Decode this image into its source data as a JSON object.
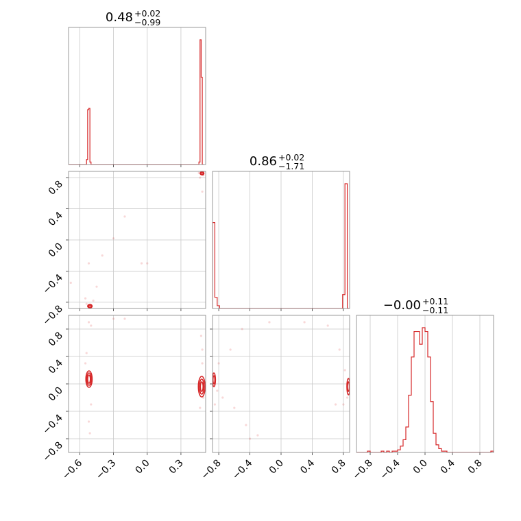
{
  "chart_data": {
    "type": "corner",
    "color": "#d62728",
    "parameters": [
      {
        "title": {
          "value": "0.48",
          "upper": "+0.02",
          "lower": "−0.99"
        },
        "range": [
          -0.7,
          0.52
        ]
      },
      {
        "title": {
          "value": "0.86",
          "upper": "+0.02",
          "lower": "−1.71"
        },
        "range": [
          -0.88,
          0.88
        ]
      },
      {
        "title": {
          "value": "−0.00",
          "upper": "+0.11",
          "lower": "−0.11"
        },
        "range": [
          -1.0,
          1.0
        ]
      }
    ],
    "tick_labels": {
      "p0": [
        {
          "v": -0.6,
          "t": "−0.6"
        },
        {
          "v": -0.3,
          "t": "−0.3"
        },
        {
          "v": 0.0,
          "t": "0.0"
        },
        {
          "v": 0.3,
          "t": "0.3"
        }
      ],
      "p1": [
        {
          "v": -0.8,
          "t": "−0.8"
        },
        {
          "v": -0.4,
          "t": "−0.4"
        },
        {
          "v": 0.0,
          "t": "0.0"
        },
        {
          "v": 0.4,
          "t": "0.4"
        },
        {
          "v": 0.8,
          "t": "0.8"
        }
      ],
      "p2": [
        {
          "v": -0.8,
          "t": "−0.8"
        },
        {
          "v": -0.4,
          "t": "−0.4"
        },
        {
          "v": 0.0,
          "t": "0.0"
        },
        {
          "v": 0.4,
          "t": "0.4"
        },
        {
          "v": 0.8,
          "t": "0.8"
        }
      ]
    },
    "histograms": [
      {
        "param": 0,
        "bins": [
          -0.7,
          -0.54,
          -0.53,
          -0.52,
          -0.51,
          -0.5,
          0.46,
          0.47,
          0.48,
          0.49,
          0.5
        ],
        "counts": [
          0,
          0.04,
          0.44,
          0.45,
          0.02,
          0,
          0.02,
          1.0,
          0.7,
          0.0
        ]
      },
      {
        "param": 1,
        "bins": [
          -0.88,
          -0.85,
          -0.82,
          -0.79,
          0.79,
          0.82,
          0.85,
          0.88
        ],
        "counts": [
          0.62,
          0.08,
          0.02,
          0.0,
          0.1,
          0.9,
          0.0
        ]
      },
      {
        "param": 2,
        "bins": [
          -1.0,
          -0.96,
          -0.92,
          -0.88,
          -0.84,
          -0.8,
          -0.76,
          -0.72,
          -0.68,
          -0.64,
          -0.6,
          -0.56,
          -0.52,
          -0.48,
          -0.44,
          -0.4,
          -0.36,
          -0.32,
          -0.28,
          -0.24,
          -0.2,
          -0.16,
          -0.12,
          -0.08,
          -0.04,
          0.0,
          0.04,
          0.08,
          0.12,
          0.16,
          0.2,
          0.24,
          0.28,
          0.32,
          0.36,
          0.4,
          0.44,
          0.48,
          0.52,
          0.56,
          0.6,
          0.64,
          0.68,
          0.72,
          0.76,
          0.8,
          0.84,
          0.88,
          0.92,
          0.96,
          1.0
        ],
        "counts": [
          0,
          0,
          0,
          0,
          0.01,
          0,
          0,
          0,
          0,
          0.01,
          0,
          0.01,
          0,
          0.01,
          0.01,
          0.02,
          0.05,
          0.1,
          0.2,
          0.45,
          0.75,
          0.95,
          0.95,
          0.85,
          0.98,
          0.95,
          0.75,
          0.4,
          0.15,
          0.06,
          0.03,
          0.01,
          0.01,
          0,
          0,
          0,
          0,
          0,
          0,
          0,
          0,
          0,
          0,
          0,
          0,
          0,
          0,
          0,
          0,
          0.01
        ]
      }
    ],
    "contours_10": [
      {
        "cx": -0.51,
        "cy": -0.85,
        "rx": [
          0.012,
          0.02
        ],
        "ry": [
          0.012,
          0.022
        ]
      },
      {
        "cx": 0.488,
        "cy": 0.855,
        "rx": [
          0.01,
          0.017
        ],
        "ry": [
          0.012,
          0.02
        ]
      }
    ],
    "contours_20": [
      {
        "cx": -0.518,
        "cy": 0.07,
        "rx": [
          0.012,
          0.02,
          0.028
        ],
        "ry": [
          0.06,
          0.09,
          0.12
        ]
      },
      {
        "cx": 0.485,
        "cy": -0.04,
        "rx": [
          0.012,
          0.02,
          0.03
        ],
        "ry": [
          0.07,
          0.11,
          0.15
        ]
      }
    ],
    "contours_21": [
      {
        "cx": -0.862,
        "cy": 0.06,
        "rx": [
          0.012,
          0.02
        ],
        "ry": [
          0.06,
          0.1
        ]
      },
      {
        "cx": 0.865,
        "cy": -0.04,
        "rx": [
          0.012,
          0.02
        ],
        "ry": [
          0.07,
          0.12
        ]
      }
    ],
    "scatter_10": [
      [
        0.46,
        0.86
      ],
      [
        0.5,
        0.83
      ],
      [
        0.47,
        0.8
      ],
      [
        0.49,
        0.62
      ],
      [
        -0.52,
        -0.84
      ],
      [
        -0.54,
        -0.82
      ],
      [
        -0.5,
        -0.87
      ],
      [
        -0.45,
        -0.6
      ],
      [
        -0.4,
        -0.2
      ],
      [
        -0.3,
        0.02
      ],
      [
        -0.2,
        0.3
      ],
      [
        -0.55,
        -0.75
      ],
      [
        -0.48,
        -0.78
      ],
      [
        -0.52,
        -0.3
      ],
      [
        -0.05,
        -0.3
      ],
      [
        0.0,
        -0.3
      ],
      [
        -0.68,
        -0.55
      ]
    ],
    "scatter_20": [
      [
        -0.52,
        0.9
      ],
      [
        -0.5,
        0.85
      ],
      [
        -0.3,
        0.95
      ],
      [
        -0.55,
        0.3
      ],
      [
        -0.5,
        -0.3
      ],
      [
        -0.52,
        -0.55
      ],
      [
        -0.51,
        -0.72
      ],
      [
        0.49,
        0.5
      ],
      [
        0.48,
        0.7
      ],
      [
        0.47,
        -0.35
      ],
      [
        0.5,
        -0.2
      ],
      [
        -0.2,
        0.95
      ],
      [
        -0.54,
        0.45
      ],
      [
        0.49,
        0.3
      ]
    ],
    "scatter_21": [
      [
        -0.82,
        -0.1
      ],
      [
        -0.75,
        -0.2
      ],
      [
        -0.6,
        -0.35
      ],
      [
        -0.45,
        -0.6
      ],
      [
        -0.3,
        -0.75
      ],
      [
        -0.8,
        0.3
      ],
      [
        -0.65,
        0.5
      ],
      [
        -0.5,
        0.8
      ],
      [
        0.3,
        0.9
      ],
      [
        0.6,
        0.85
      ],
      [
        0.75,
        0.5
      ],
      [
        0.82,
        0.2
      ],
      [
        0.8,
        -0.3
      ],
      [
        0.7,
        -0.3
      ],
      [
        -0.4,
        -0.8
      ],
      [
        -0.85,
        -0.3
      ],
      [
        0.85,
        -0.2
      ],
      [
        -0.15,
        0.9
      ]
    ]
  }
}
